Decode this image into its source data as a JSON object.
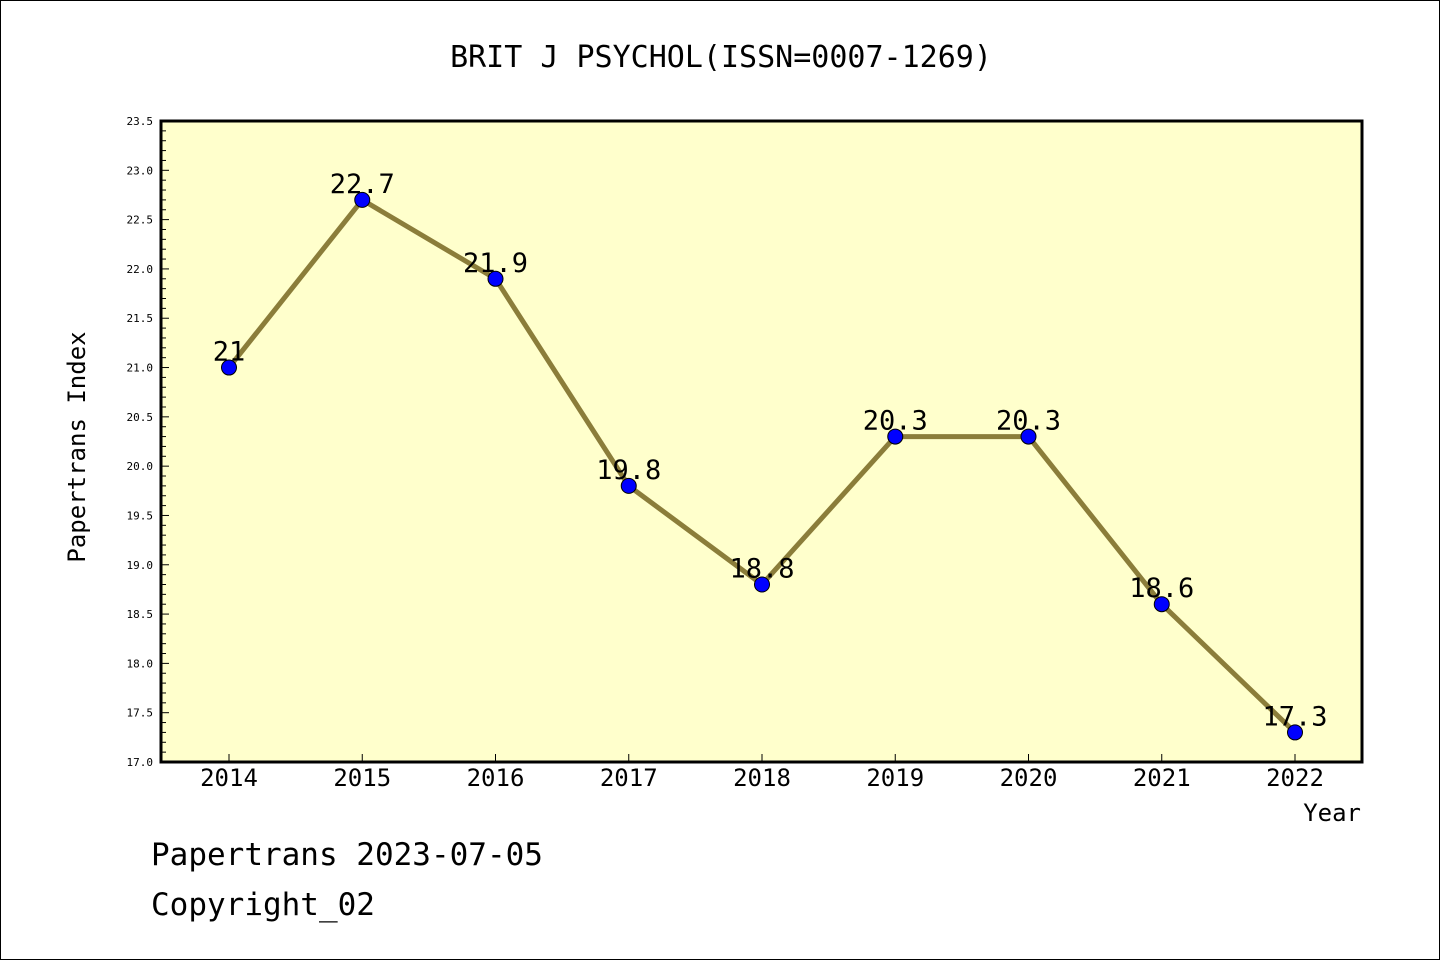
{
  "chart_data": {
    "type": "line",
    "title": "BRIT J PSYCHOL(ISSN=0007-1269)",
    "xlabel": "Year",
    "ylabel": "Papertrans Index",
    "categories": [
      "2014",
      "2015",
      "2016",
      "2017",
      "2018",
      "2019",
      "2020",
      "2021",
      "2022"
    ],
    "values": [
      21,
      22.7,
      21.9,
      19.8,
      18.8,
      20.3,
      20.3,
      18.6,
      17.3
    ],
    "value_labels": [
      "21",
      "22.7",
      "21.9",
      "19.8",
      "18.8",
      "20.3",
      "20.3",
      "18.6",
      "17.3"
    ],
    "ylim": [
      17.0,
      23.5
    ],
    "yticks": [
      "17.0",
      "17.5",
      "18.0",
      "18.5",
      "19.0",
      "19.5",
      "20.0",
      "20.5",
      "21.0",
      "21.5",
      "22.0",
      "22.5",
      "23.0",
      "23.5"
    ],
    "grid": false,
    "legend": "none",
    "colors": {
      "plot_background": "#ffffcc",
      "line": "#8b7d3a",
      "marker": "#0000ff"
    }
  },
  "footer": {
    "source_line": "Papertrans 2023-07-05",
    "copyright_line": "Copyright_02"
  }
}
